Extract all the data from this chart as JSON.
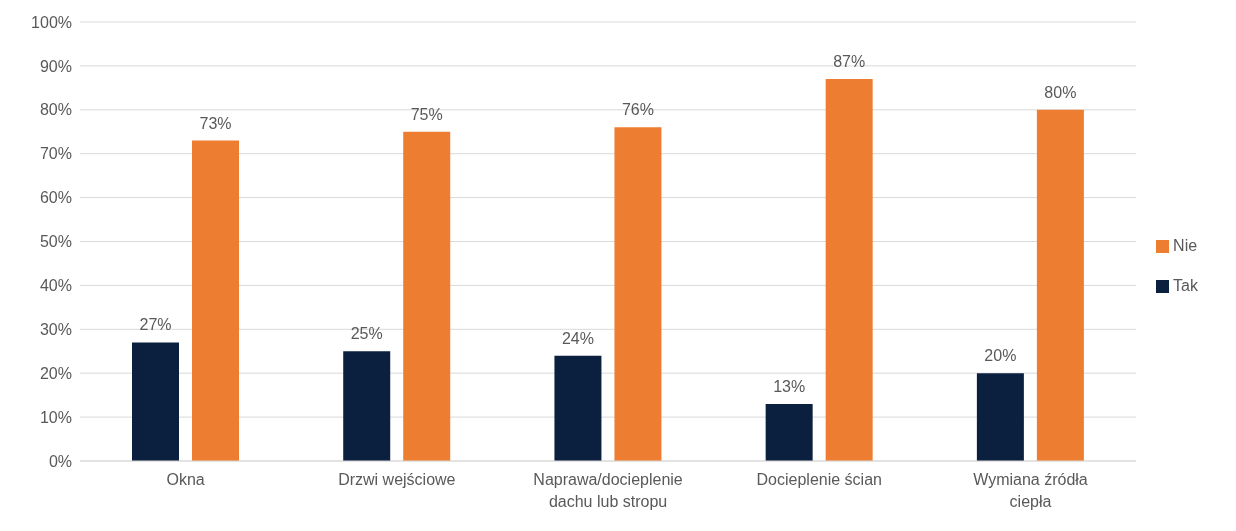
{
  "chart_data": {
    "type": "bar",
    "categories": [
      "Okna",
      "Drzwi wejściowe",
      "Naprawa/docieplenie dachu lub stropu",
      "Docieplenie ścian",
      "Wymiana źródła ciepła"
    ],
    "series": [
      {
        "name": "Tak",
        "color": "#0b1f3f",
        "values": [
          27,
          25,
          24,
          13,
          20
        ],
        "value_labels": [
          "27%",
          "25%",
          "24%",
          "13%",
          "20%"
        ]
      },
      {
        "name": "Nie",
        "color": "#ed7d31",
        "values": [
          73,
          75,
          76,
          87,
          80
        ],
        "value_labels": [
          "73%",
          "75%",
          "76%",
          "87%",
          "80%"
        ]
      }
    ],
    "ylim": [
      0,
      100
    ],
    "yticks": [
      {
        "value": 0,
        "label": "0%"
      },
      {
        "value": 10,
        "label": "10%"
      },
      {
        "value": 20,
        "label": "20%"
      },
      {
        "value": 30,
        "label": "30%"
      },
      {
        "value": 40,
        "label": "40%"
      },
      {
        "value": 50,
        "label": "50%"
      },
      {
        "value": 60,
        "label": "60%"
      },
      {
        "value": 70,
        "label": "70%"
      },
      {
        "value": 80,
        "label": "80%"
      },
      {
        "value": 90,
        "label": "90%"
      },
      {
        "value": 100,
        "label": "100%"
      }
    ],
    "grid": "y",
    "legend": "right"
  }
}
